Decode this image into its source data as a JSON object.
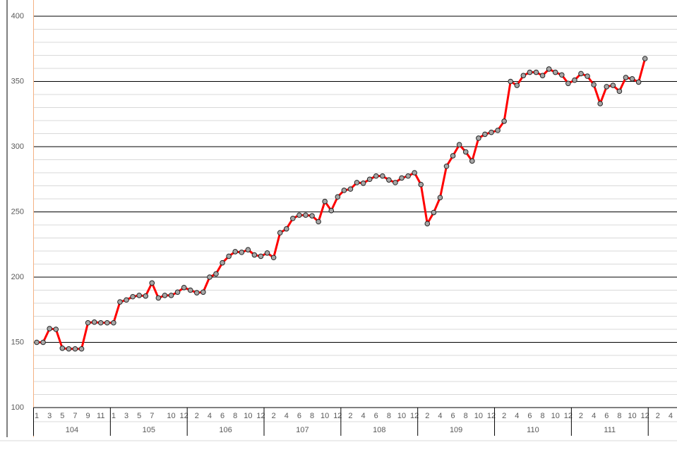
{
  "chart_data": {
    "type": "line",
    "categories": [
      "1",
      null,
      "3",
      null,
      "5",
      null,
      "7",
      null,
      "9",
      null,
      "11",
      null,
      "1",
      null,
      "3",
      null,
      "5",
      null,
      "7",
      null,
      null,
      "10",
      null,
      "12",
      null,
      "2",
      null,
      "4",
      null,
      "6",
      null,
      "8",
      null,
      "10",
      null,
      "12",
      null,
      "2",
      null,
      "4",
      null,
      "6",
      null,
      "8",
      null,
      "10",
      null,
      "12",
      null,
      "2",
      null,
      "4",
      null,
      "6",
      null,
      "8",
      null,
      "10",
      null,
      "12",
      null,
      "2",
      null,
      "4",
      null,
      "6",
      null,
      "8",
      null,
      "10",
      null,
      "12",
      null,
      "2",
      null,
      "4",
      null,
      "6",
      null,
      "8",
      null,
      "10",
      null,
      "12",
      null,
      "2",
      null,
      "4",
      null,
      "6",
      null,
      "8",
      null,
      "10",
      null,
      "12",
      null,
      "2",
      null,
      "4"
    ],
    "groups": [
      "104",
      "105",
      "106",
      "107",
      "108",
      "109",
      "110",
      "111"
    ],
    "values": [
      150,
      150,
      160.5,
      160,
      145.5,
      145,
      145,
      145,
      165,
      165.5,
      165,
      165,
      165,
      181,
      182.5,
      185,
      186,
      185.5,
      195.5,
      184,
      186,
      186,
      188.5,
      192,
      190,
      188,
      188.5,
      200,
      202.5,
      211,
      216,
      219.5,
      219,
      221,
      217,
      216,
      218.5,
      215,
      234,
      237,
      245,
      247.5,
      247.5,
      247,
      242.5,
      258,
      251,
      261.5,
      266.5,
      267.5,
      272.5,
      272,
      275,
      277.5,
      277.5,
      274.5,
      272.5,
      276,
      277.5,
      280,
      271,
      241,
      249.5,
      261,
      285,
      293,
      301.5,
      296,
      289,
      306.5,
      309.5,
      311,
      312.5,
      319.5,
      350,
      347,
      354.5,
      357,
      357,
      354.5,
      359.5,
      357,
      355,
      348.5,
      351,
      356,
      354,
      347.5,
      333,
      346,
      347,
      342.5,
      353,
      352,
      349.5,
      367.5,
      null,
      null,
      null,
      null
    ],
    "color": "#ff0000",
    "marker_color": "#a6a6a6",
    "ylim": [
      100,
      400
    ],
    "yticks": [
      100,
      150,
      200,
      250,
      300,
      350,
      400
    ],
    "minor_yticks": [
      110,
      120,
      130,
      140,
      160,
      170,
      180,
      190,
      210,
      220,
      230,
      240,
      260,
      270,
      280,
      290,
      310,
      320,
      330,
      340,
      360,
      370,
      380,
      390
    ],
    "grid": true
  }
}
